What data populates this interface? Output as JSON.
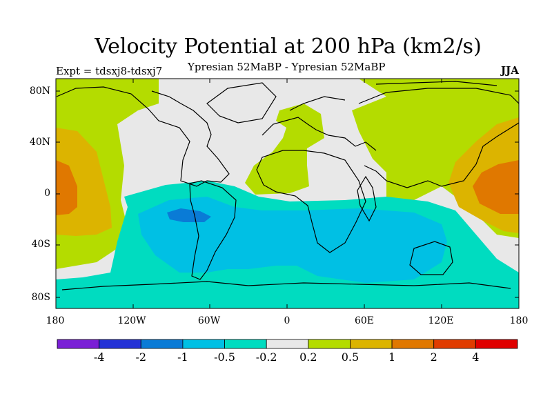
{
  "title": "Velocity Potential at 200 hPa (km2/s)",
  "experiment": "Expt = tdsxj8-tdsxj7",
  "subtitle": "Ypresian  52MaBP - Ypresian  52MaBP",
  "season": "JJA",
  "y_axis_labels": [
    "80N",
    "40N",
    "0",
    "40S",
    "80S"
  ],
  "x_axis_labels": [
    "180",
    "120W",
    "60W",
    "0",
    "60E",
    "120E",
    "180"
  ],
  "colorbar": {
    "colors": [
      "#7a1fd6",
      "#2432d6",
      "#0a7bd6",
      "#00c0e4",
      "#00dcc0",
      "#e8e8e8",
      "#b4dc00",
      "#dcb400",
      "#e07800",
      "#e03c00",
      "#e00000"
    ],
    "labels": [
      "-4",
      "-2",
      "-1",
      "-0.5",
      "-0.2",
      "0.2",
      "0.5",
      "1",
      "2",
      "4"
    ]
  },
  "colors": {
    "neutral": "#e8e8e8",
    "light_negative": "#00dcc0",
    "mid_negative": "#00c0e4",
    "strong_negative": "#0a7bd6",
    "light_positive": "#b4dc00",
    "mid_positive": "#dcb400",
    "strong_positive": "#e07800"
  }
}
